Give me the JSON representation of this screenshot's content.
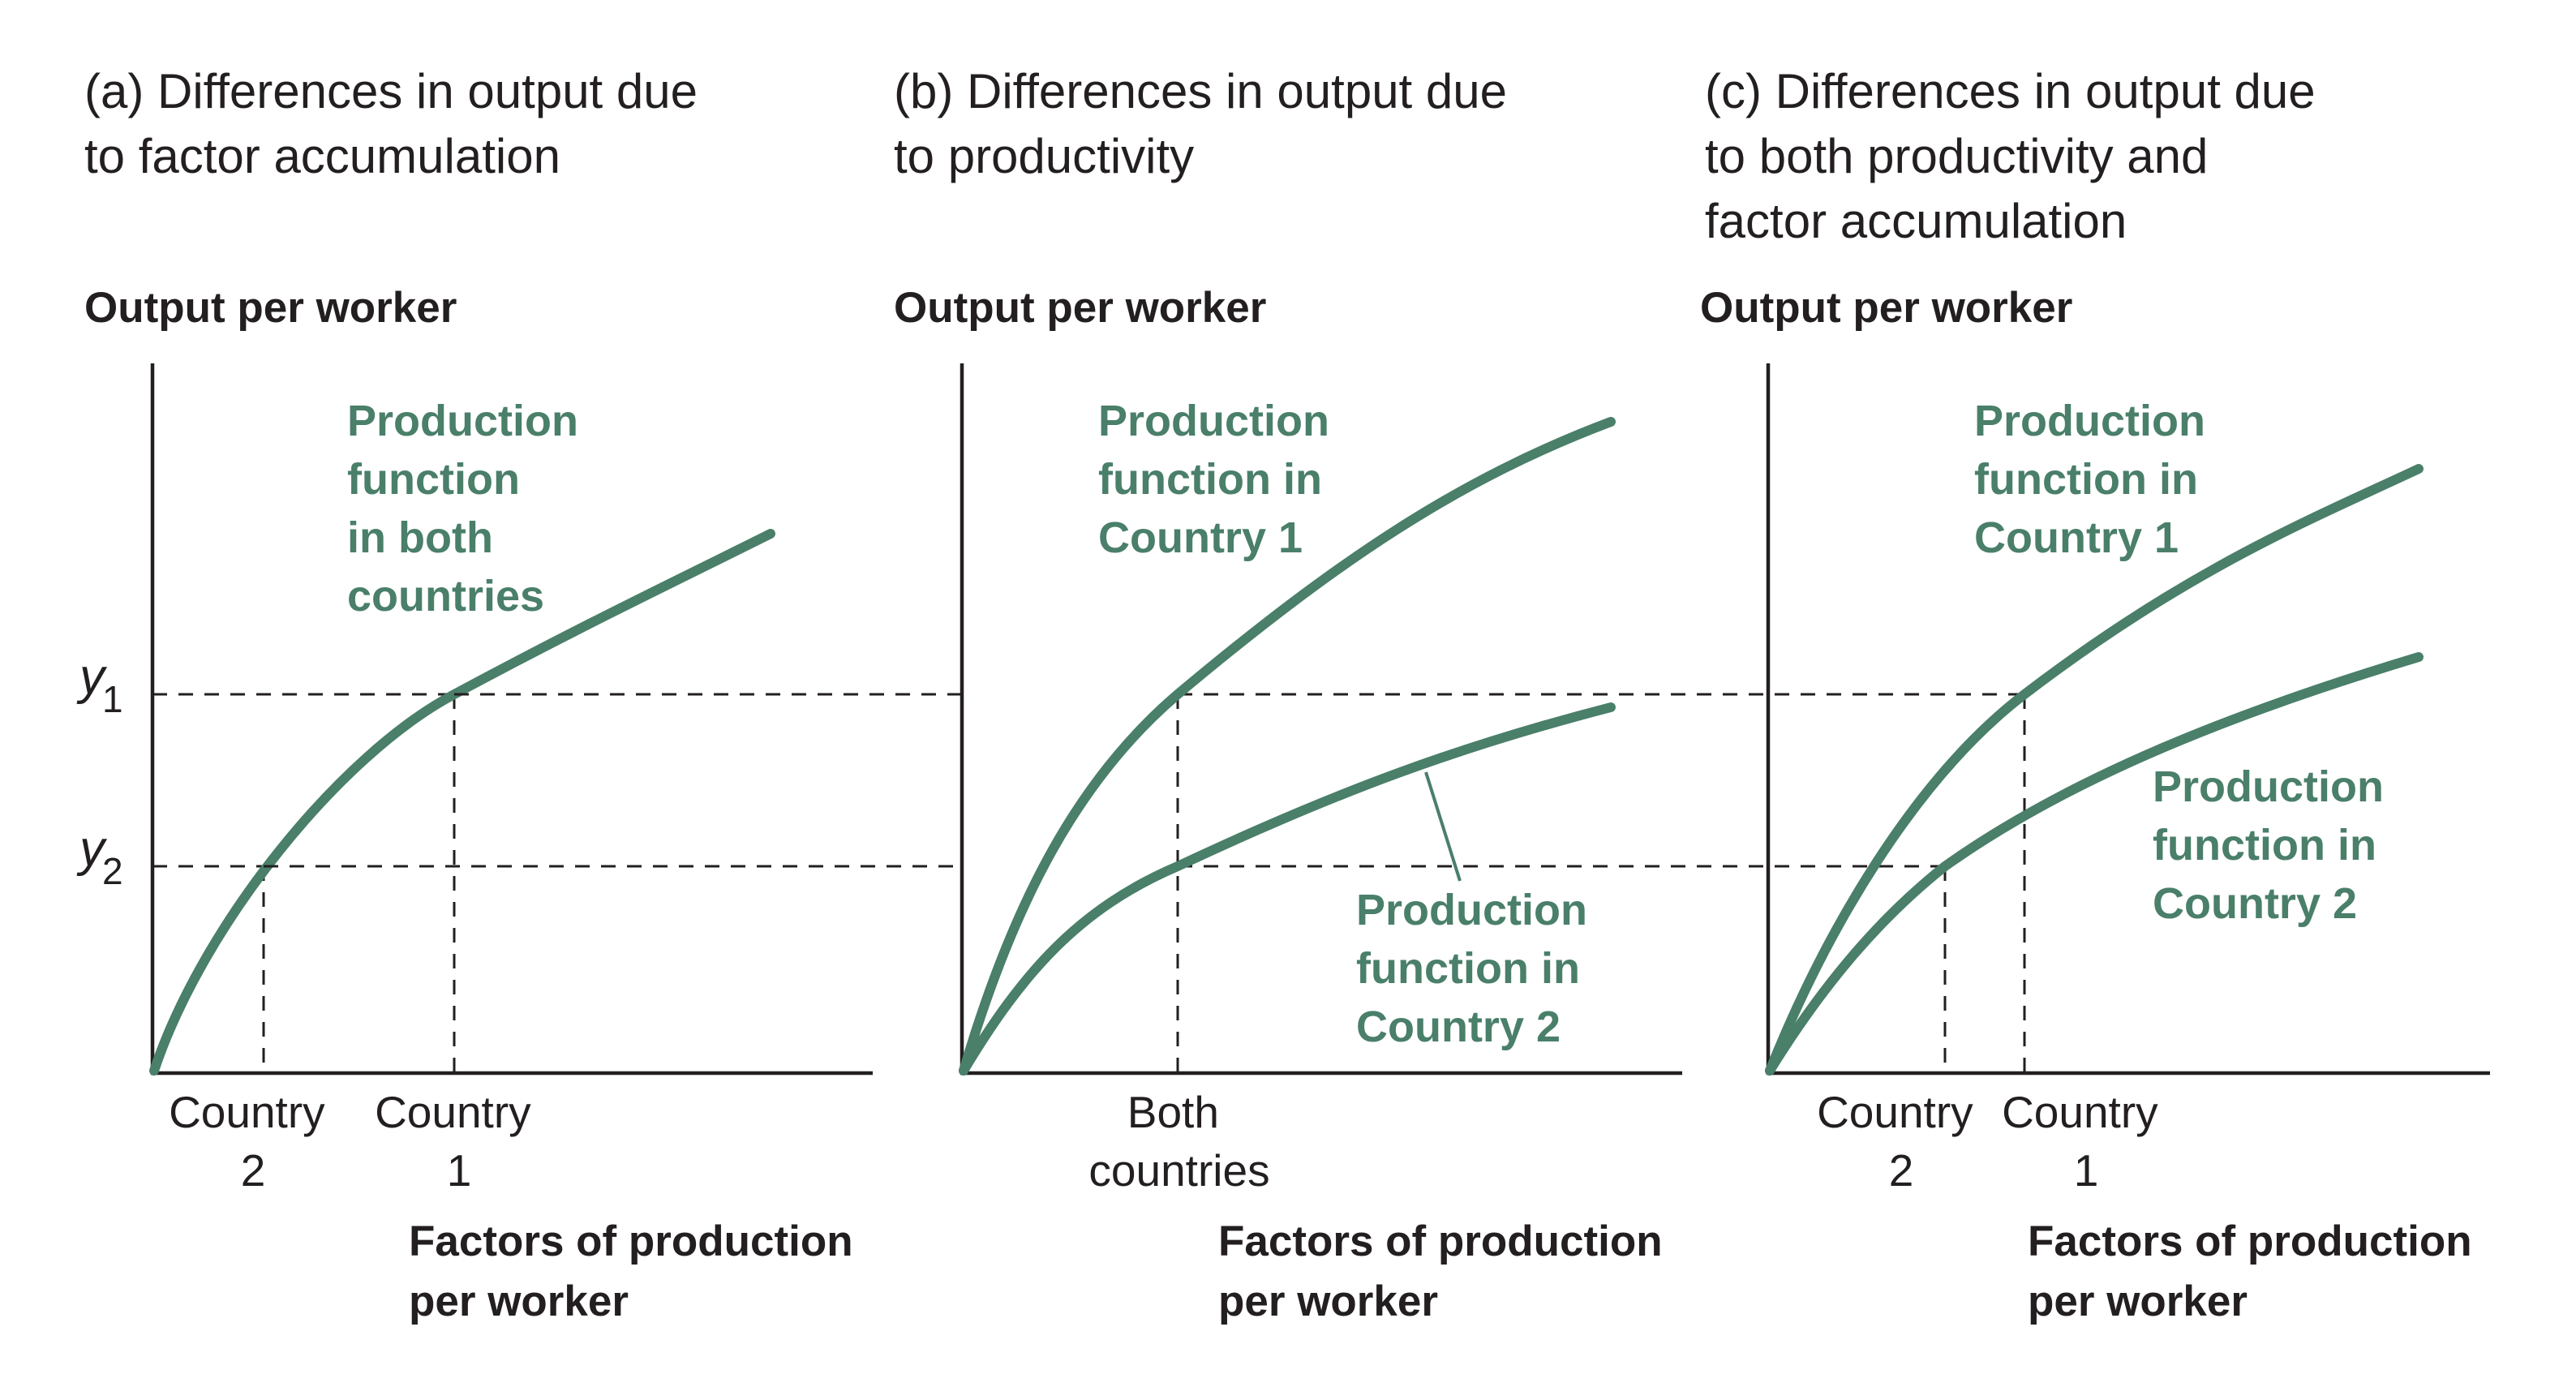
{
  "colors": {
    "curve": "#4a7f6a",
    "ink": "#231f20",
    "background": "#ffffff"
  },
  "y_levels": {
    "y1": "y",
    "y1_sub": "1",
    "y2": "y",
    "y2_sub": "2"
  },
  "panels": [
    {
      "caption": [
        "(a) Differences in output due",
        "to factor accumulation"
      ],
      "y_axis_title": "Output per worker",
      "x_axis_title": [
        "Factors of production",
        "per worker"
      ],
      "ticks": [
        {
          "lines": [
            "Country",
            "2"
          ]
        },
        {
          "lines": [
            "Country",
            "1"
          ]
        }
      ],
      "curve_labels": [
        {
          "lines": [
            "Production",
            "function",
            "in both",
            "countries"
          ]
        }
      ]
    },
    {
      "caption": [
        "(b) Differences in output due",
        "to productivity"
      ],
      "y_axis_title": "Output per worker",
      "x_axis_title": [
        "Factors of production",
        "per worker"
      ],
      "ticks": [
        {
          "lines": [
            "Both",
            "countries"
          ]
        }
      ],
      "curve_labels": [
        {
          "lines": [
            "Production",
            "function in",
            "Country 1"
          ]
        },
        {
          "lines": [
            "Production",
            "function in",
            "Country 2"
          ]
        }
      ]
    },
    {
      "caption": [
        "(c) Differences in output due",
        "to both productivity and",
        "factor accumulation"
      ],
      "y_axis_title": "Output per worker",
      "x_axis_title": [
        "Factors of production",
        "per worker"
      ],
      "ticks": [
        {
          "lines": [
            "Country",
            "2"
          ]
        },
        {
          "lines": [
            "Country",
            "1"
          ]
        }
      ],
      "curve_labels": [
        {
          "lines": [
            "Production",
            "function in",
            "Country 1"
          ]
        },
        {
          "lines": [
            "Production",
            "function in",
            "Country 2"
          ]
        }
      ]
    }
  ]
}
